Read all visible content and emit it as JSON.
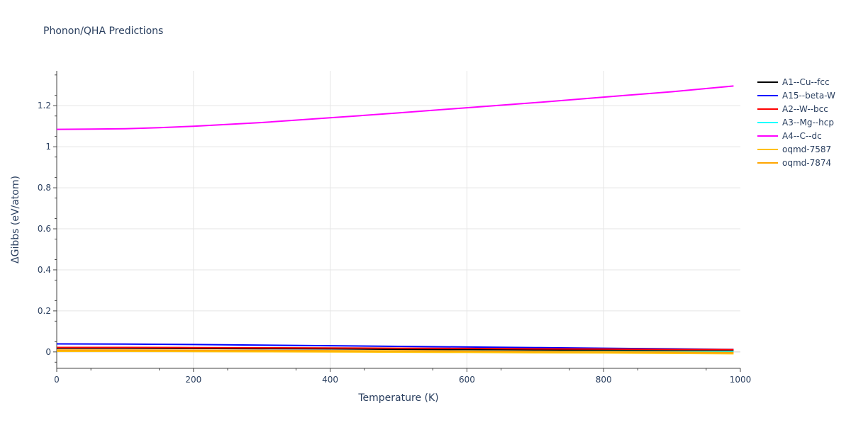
{
  "chart_data": {
    "type": "line",
    "title": "Phonon/QHA Predictions",
    "xlabel": "Temperature (K)",
    "ylabel": "ΔGibbs (eV/atom)",
    "xlim": [
      0,
      1000
    ],
    "ylim": [
      -0.08,
      1.37
    ],
    "x_ticks": [
      0,
      200,
      400,
      600,
      800,
      1000
    ],
    "x_tick_labels": [
      "0",
      "200",
      "400",
      "600",
      "800",
      "1000"
    ],
    "y_ticks": [
      0,
      0.2,
      0.4,
      0.6,
      0.8,
      1.0,
      1.2
    ],
    "y_tick_labels": [
      "0",
      "0.2",
      "0.4",
      "0.6",
      "0.8",
      "1",
      "1.2"
    ],
    "grid": true,
    "legend_position": "right",
    "series": [
      {
        "name": "A1--Cu--fcc",
        "color": "#000000",
        "x": [
          0,
          100,
          200,
          300,
          400,
          500,
          600,
          700,
          800,
          900,
          990
        ],
        "y": [
          0.018,
          0.018,
          0.017,
          0.016,
          0.015,
          0.013,
          0.012,
          0.01,
          0.009,
          0.007,
          0.006
        ]
      },
      {
        "name": "A15--beta-W",
        "color": "#0000ff",
        "x": [
          0,
          100,
          200,
          300,
          400,
          500,
          600,
          700,
          800,
          900,
          990
        ],
        "y": [
          0.039,
          0.038,
          0.036,
          0.033,
          0.03,
          0.027,
          0.024,
          0.021,
          0.018,
          0.015,
          0.012
        ]
      },
      {
        "name": "A2--W--bcc",
        "color": "#ff0000",
        "x": [
          0,
          100,
          200,
          300,
          400,
          500,
          600,
          700,
          800,
          900,
          990
        ],
        "y": [
          0.022,
          0.022,
          0.021,
          0.02,
          0.019,
          0.018,
          0.017,
          0.015,
          0.014,
          0.012,
          0.011
        ]
      },
      {
        "name": "A3--Mg--hcp",
        "color": "#00ffff",
        "x": [
          0,
          100,
          200,
          300,
          400,
          500,
          600,
          700,
          800,
          900,
          990
        ],
        "y": [
          0.006,
          0.006,
          0.006,
          0.005,
          0.005,
          0.004,
          0.004,
          0.003,
          0.003,
          0.002,
          0.002
        ]
      },
      {
        "name": "A4--C--dc",
        "color": "#ff00ff",
        "x": [
          0,
          50,
          100,
          150,
          200,
          300,
          400,
          500,
          600,
          700,
          800,
          900,
          990
        ],
        "y": [
          1.085,
          1.086,
          1.088,
          1.093,
          1.1,
          1.118,
          1.141,
          1.165,
          1.19,
          1.215,
          1.242,
          1.268,
          1.296
        ]
      },
      {
        "name": "oqmd-7587",
        "color": "#ffc000",
        "x": [
          0,
          100,
          200,
          300,
          400,
          500,
          600,
          700,
          800,
          900,
          990
        ],
        "y": [
          0.003,
          0.003,
          0.002,
          0.001,
          0.0,
          -0.001,
          -0.002,
          -0.004,
          -0.005,
          -0.007,
          -0.009
        ]
      },
      {
        "name": "oqmd-7874",
        "color": "#ffa500",
        "x": [
          0,
          100,
          200,
          300,
          400,
          500,
          600,
          700,
          800,
          900,
          990
        ],
        "y": [
          0.009,
          0.009,
          0.008,
          0.007,
          0.006,
          0.005,
          0.004,
          0.002,
          0.001,
          -0.001,
          -0.003
        ]
      }
    ]
  }
}
